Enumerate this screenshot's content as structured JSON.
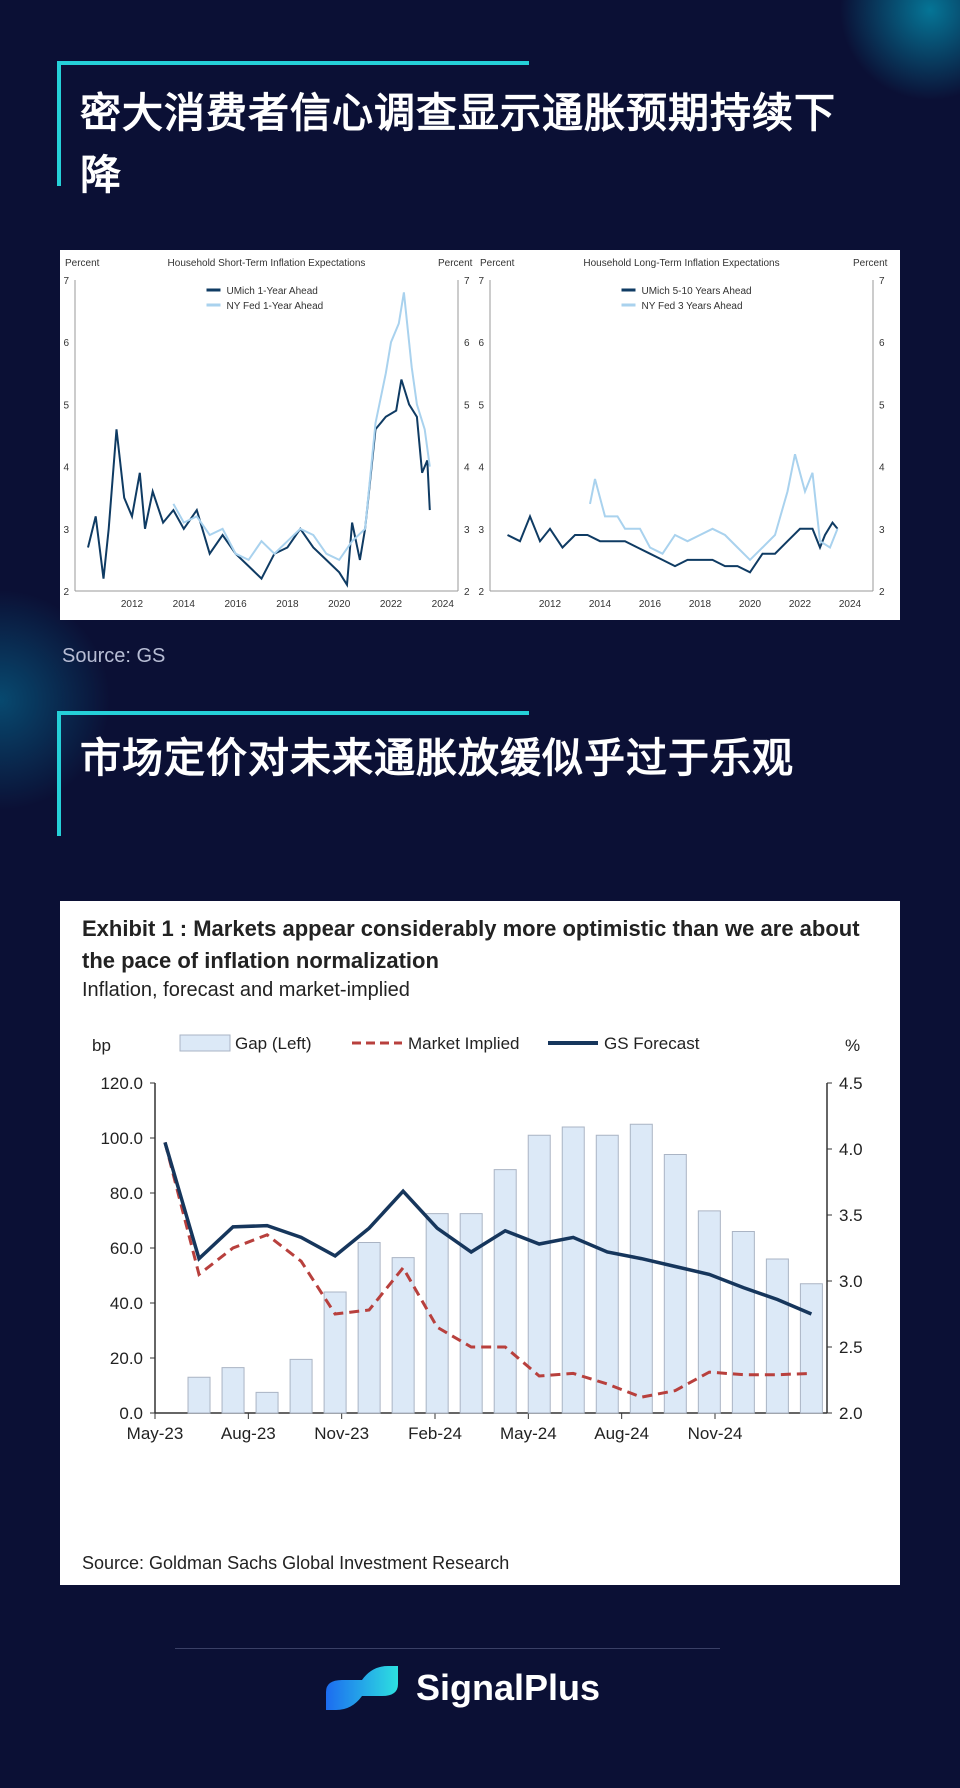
{
  "section1": {
    "title": "密大消费者信心调查显示通胀预期持续下降",
    "source": "Source: GS"
  },
  "section2": {
    "title": "市场定价对未来通胀放缓似乎过于乐观"
  },
  "brand": {
    "name": "SignalPlus"
  },
  "colors": {
    "dark": "#0f3b63",
    "light": "#a9d2ee",
    "red": "#b8403d",
    "bar": "#dce9f7",
    "accent": "#25d0d8"
  },
  "chart_data": [
    {
      "type": "line",
      "title": "Household Short-Term Inflation Expectations",
      "ylabel_left": "Percent",
      "ylabel_right": "Percent",
      "ylim": [
        2,
        7
      ],
      "yticks": [
        "2",
        "3",
        "4",
        "5",
        "6",
        "7"
      ],
      "xticks": [
        "2012",
        "2014",
        "2016",
        "2018",
        "2020",
        "2022",
        "2024"
      ],
      "series": [
        {
          "name": "UMich 1-Year Ahead",
          "points": [
            [
              2010.3,
              2.7
            ],
            [
              2010.6,
              3.2
            ],
            [
              2010.9,
              2.2
            ],
            [
              2011.1,
              3.0
            ],
            [
              2011.4,
              4.6
            ],
            [
              2011.7,
              3.5
            ],
            [
              2012.0,
              3.2
            ],
            [
              2012.3,
              3.9
            ],
            [
              2012.5,
              3.0
            ],
            [
              2012.8,
              3.6
            ],
            [
              2013.2,
              3.1
            ],
            [
              2013.6,
              3.3
            ],
            [
              2014.0,
              3.0
            ],
            [
              2014.5,
              3.3
            ],
            [
              2015.0,
              2.6
            ],
            [
              2015.5,
              2.9
            ],
            [
              2016.0,
              2.6
            ],
            [
              2016.5,
              2.4
            ],
            [
              2017.0,
              2.2
            ],
            [
              2017.5,
              2.6
            ],
            [
              2018.0,
              2.7
            ],
            [
              2018.5,
              3.0
            ],
            [
              2019.0,
              2.7
            ],
            [
              2019.5,
              2.5
            ],
            [
              2020.0,
              2.3
            ],
            [
              2020.3,
              2.1
            ],
            [
              2020.5,
              3.1
            ],
            [
              2020.8,
              2.5
            ],
            [
              2021.0,
              3.0
            ],
            [
              2021.4,
              4.6
            ],
            [
              2021.8,
              4.8
            ],
            [
              2022.2,
              4.9
            ],
            [
              2022.4,
              5.4
            ],
            [
              2022.7,
              5.0
            ],
            [
              2023.0,
              4.8
            ],
            [
              2023.2,
              3.9
            ],
            [
              2023.4,
              4.1
            ],
            [
              2023.5,
              3.3
            ]
          ]
        },
        {
          "name": "NY Fed 1-Year Ahead",
          "points": [
            [
              2013.6,
              3.4
            ],
            [
              2014.0,
              3.1
            ],
            [
              2014.5,
              3.2
            ],
            [
              2015.0,
              2.9
            ],
            [
              2015.5,
              3.0
            ],
            [
              2016.0,
              2.6
            ],
            [
              2016.5,
              2.5
            ],
            [
              2017.0,
              2.8
            ],
            [
              2017.5,
              2.6
            ],
            [
              2018.0,
              2.8
            ],
            [
              2018.5,
              3.0
            ],
            [
              2019.0,
              2.9
            ],
            [
              2019.5,
              2.6
            ],
            [
              2020.0,
              2.5
            ],
            [
              2020.5,
              2.8
            ],
            [
              2021.0,
              3.0
            ],
            [
              2021.4,
              4.7
            ],
            [
              2021.8,
              5.5
            ],
            [
              2022.0,
              6.0
            ],
            [
              2022.3,
              6.3
            ],
            [
              2022.5,
              6.8
            ],
            [
              2022.8,
              5.6
            ],
            [
              2023.0,
              5.0
            ],
            [
              2023.3,
              4.6
            ],
            [
              2023.5,
              4.0
            ]
          ]
        }
      ]
    },
    {
      "type": "line",
      "title": "Household Long-Term Inflation Expectations",
      "ylabel_left": "Percent",
      "ylabel_right": "Percent",
      "ylim": [
        2,
        7
      ],
      "yticks": [
        "2",
        "3",
        "4",
        "5",
        "6",
        "7"
      ],
      "xticks": [
        "2012",
        "2014",
        "2016",
        "2018",
        "2020",
        "2022",
        "2024"
      ],
      "series": [
        {
          "name": "UMich 5-10 Years Ahead",
          "points": [
            [
              2010.3,
              2.9
            ],
            [
              2010.8,
              2.8
            ],
            [
              2011.2,
              3.2
            ],
            [
              2011.6,
              2.8
            ],
            [
              2012.0,
              3.0
            ],
            [
              2012.5,
              2.7
            ],
            [
              2013.0,
              2.9
            ],
            [
              2013.5,
              2.9
            ],
            [
              2014.0,
              2.8
            ],
            [
              2014.5,
              2.8
            ],
            [
              2015.0,
              2.8
            ],
            [
              2015.5,
              2.7
            ],
            [
              2016.0,
              2.6
            ],
            [
              2016.5,
              2.5
            ],
            [
              2017.0,
              2.4
            ],
            [
              2017.5,
              2.5
            ],
            [
              2018.0,
              2.5
            ],
            [
              2018.5,
              2.5
            ],
            [
              2019.0,
              2.4
            ],
            [
              2019.5,
              2.4
            ],
            [
              2020.0,
              2.3
            ],
            [
              2020.5,
              2.6
            ],
            [
              2021.0,
              2.6
            ],
            [
              2021.5,
              2.8
            ],
            [
              2022.0,
              3.0
            ],
            [
              2022.5,
              3.0
            ],
            [
              2022.8,
              2.7
            ],
            [
              2023.0,
              2.9
            ],
            [
              2023.3,
              3.1
            ],
            [
              2023.5,
              3.0
            ]
          ]
        },
        {
          "name": "NY Fed 3 Years Ahead",
          "points": [
            [
              2013.6,
              3.4
            ],
            [
              2013.8,
              3.8
            ],
            [
              2014.2,
              3.2
            ],
            [
              2014.7,
              3.2
            ],
            [
              2015.0,
              3.0
            ],
            [
              2015.6,
              3.0
            ],
            [
              2016.0,
              2.7
            ],
            [
              2016.5,
              2.6
            ],
            [
              2017.0,
              2.9
            ],
            [
              2017.5,
              2.8
            ],
            [
              2018.0,
              2.9
            ],
            [
              2018.5,
              3.0
            ],
            [
              2019.0,
              2.9
            ],
            [
              2019.5,
              2.7
            ],
            [
              2020.0,
              2.5
            ],
            [
              2020.5,
              2.7
            ],
            [
              2021.0,
              2.9
            ],
            [
              2021.5,
              3.6
            ],
            [
              2021.8,
              4.2
            ],
            [
              2022.2,
              3.6
            ],
            [
              2022.5,
              3.9
            ],
            [
              2022.8,
              2.8
            ],
            [
              2023.2,
              2.7
            ],
            [
              2023.5,
              3.0
            ]
          ]
        }
      ]
    },
    {
      "type": "bar+line",
      "title": "Exhibit 1 : Markets appear considerably more optimistic than we are about the pace of inflation normalization",
      "subtitle": "Inflation, forecast and market-implied",
      "source": "Source: Goldman Sachs Global Investment Research",
      "ylabel_left": "bp",
      "ylabel_right": "%",
      "ylim_left": [
        0,
        120
      ],
      "ylim_right": [
        2.0,
        4.5
      ],
      "yticks_left": [
        "0.0",
        "20.0",
        "40.0",
        "60.0",
        "80.0",
        "100.0",
        "120.0"
      ],
      "yticks_right": [
        "2.0",
        "2.5",
        "3.0",
        "3.5",
        "4.0",
        "4.5"
      ],
      "xticks": [
        "May-23",
        "Aug-23",
        "Nov-23",
        "Feb-24",
        "May-24",
        "Aug-24",
        "Nov-24"
      ],
      "categories": [
        "May-23",
        "Jun-23",
        "Jul-23",
        "Aug-23",
        "Sep-23",
        "Oct-23",
        "Nov-23",
        "Dec-23",
        "Jan-24",
        "Feb-24",
        "Mar-24",
        "Apr-24",
        "May-24",
        "Jun-24",
        "Jul-24",
        "Aug-24",
        "Sep-24",
        "Oct-24",
        "Nov-24",
        "Dec-24"
      ],
      "series": [
        {
          "name": "Gap (Left)",
          "values": [
            null,
            13,
            16.5,
            7.5,
            19.5,
            44,
            62,
            56.5,
            72.5,
            72.5,
            88.5,
            101,
            104,
            101,
            105,
            94,
            73.5,
            66,
            56,
            47
          ]
        },
        {
          "name": "Market Implied",
          "values": [
            4.05,
            3.05,
            3.25,
            3.35,
            3.15,
            2.75,
            2.78,
            3.1,
            2.65,
            2.5,
            2.5,
            2.28,
            2.3,
            2.22,
            2.12,
            2.17,
            2.31,
            2.29,
            2.29,
            2.3
          ]
        },
        {
          "name": "GS Forecast",
          "values": [
            4.05,
            3.17,
            3.41,
            3.42,
            3.33,
            3.19,
            3.4,
            3.68,
            3.4,
            3.22,
            3.38,
            3.28,
            3.33,
            3.22,
            3.17,
            3.11,
            3.05,
            2.95,
            2.86,
            2.75
          ]
        }
      ]
    }
  ]
}
